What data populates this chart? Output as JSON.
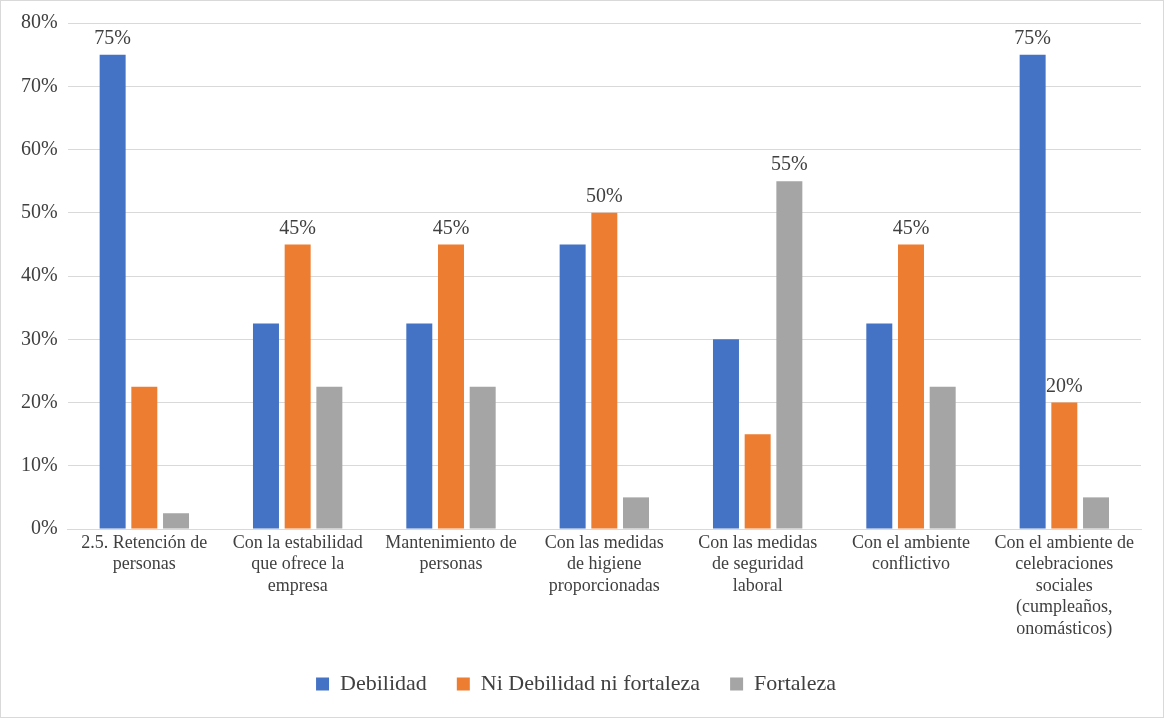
{
  "chart_data": {
    "type": "bar",
    "categories": [
      "2.5. Retención de personas",
      "Con la estabilidad que ofrece la empresa",
      "Mantenimiento de personas",
      "Con las medidas de higiene proporcionadas",
      "Con las medidas de seguridad laboral",
      "Con el ambiente conflictivo",
      "Con el ambiente de celebraciones sociales (cumpleaños, onomásticos)"
    ],
    "series": [
      {
        "name": "Debilidad",
        "color": "#4472c4",
        "values": [
          75,
          32.5,
          32.5,
          45,
          30,
          32.5,
          75
        ],
        "value_labels": [
          "75%",
          null,
          null,
          null,
          null,
          null,
          "75%"
        ]
      },
      {
        "name": "Ni Debilidad ni fortaleza",
        "color": "#ed7d31",
        "values": [
          22.5,
          45,
          45,
          50,
          15,
          45,
          20
        ],
        "value_labels": [
          null,
          "45%",
          "45%",
          "50%",
          null,
          "45%",
          "20%"
        ]
      },
      {
        "name": "Fortaleza",
        "color": "#a5a5a5",
        "values": [
          2.5,
          22.5,
          22.5,
          5,
          55,
          22.5,
          5
        ],
        "value_labels": [
          null,
          null,
          null,
          null,
          "55%",
          null,
          null
        ]
      }
    ],
    "ylim": [
      0,
      80
    ],
    "yticks": [
      {
        "value": 0,
        "label": "0%"
      },
      {
        "value": 10,
        "label": "10%"
      },
      {
        "value": 20,
        "label": "20%"
      },
      {
        "value": 30,
        "label": "30%"
      },
      {
        "value": 40,
        "label": "40%"
      },
      {
        "value": 50,
        "label": "50%"
      },
      {
        "value": 60,
        "label": "60%"
      },
      {
        "value": 70,
        "label": "70%"
      },
      {
        "value": 80,
        "label": "80%"
      }
    ],
    "grid": "y",
    "legend": "bottom"
  }
}
